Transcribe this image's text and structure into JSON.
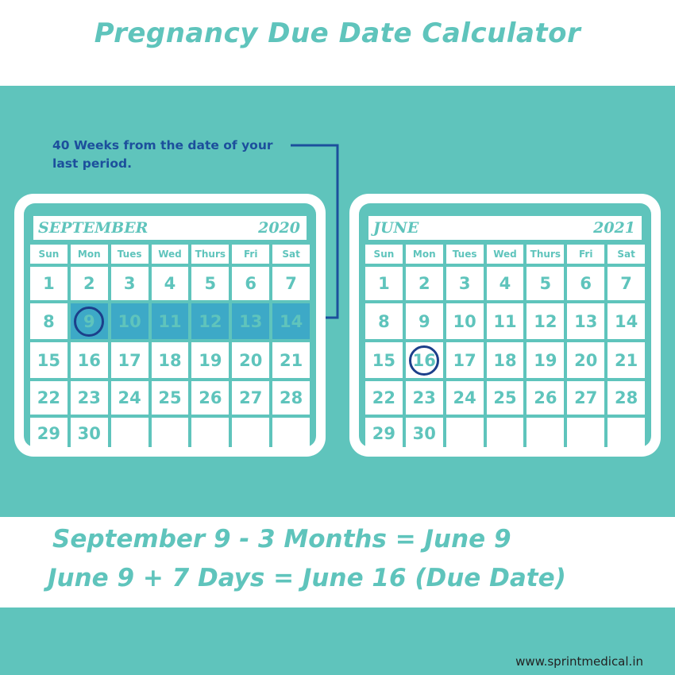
{
  "title": "Pregnancy Due Date Calculator",
  "note": "40 Weeks from the date of your last period.",
  "weekdays": [
    "Sun",
    "Mon",
    "Tues",
    "Wed",
    "Thurs",
    "Fri",
    "Sat"
  ],
  "calendars": [
    {
      "month": "SEPTEMBER",
      "year": "2020",
      "days": [
        "1",
        "2",
        "3",
        "4",
        "5",
        "6",
        "7",
        "8",
        "9",
        "10",
        "11",
        "12",
        "13",
        "14",
        "15",
        "16",
        "17",
        "18",
        "19",
        "20",
        "21",
        "22",
        "23",
        "24",
        "25",
        "26",
        "27",
        "28",
        "29",
        "30"
      ],
      "highlighted_days": [
        "9",
        "10",
        "11",
        "12",
        "13",
        "14"
      ],
      "circled_day": "9"
    },
    {
      "month": "JUNE",
      "year": "2021",
      "days": [
        "1",
        "2",
        "3",
        "4",
        "5",
        "6",
        "7",
        "8",
        "9",
        "10",
        "11",
        "12",
        "13",
        "14",
        "15",
        "16",
        "17",
        "18",
        "19",
        "20",
        "21",
        "22",
        "23",
        "24",
        "25",
        "26",
        "27",
        "28",
        "29",
        "30"
      ],
      "highlighted_days": [],
      "circled_day": "16"
    }
  ],
  "formula_lines": [
    "September 9 - 3 Months = June 9",
    "June 9 + 7 Days = June 16 (Due Date)"
  ],
  "website": "www.sprintmedical.in",
  "colors": {
    "teal": "#5fc4bc",
    "highlight": "#3da9c7",
    "navy": "#1c3f8a",
    "white": "#ffffff"
  }
}
